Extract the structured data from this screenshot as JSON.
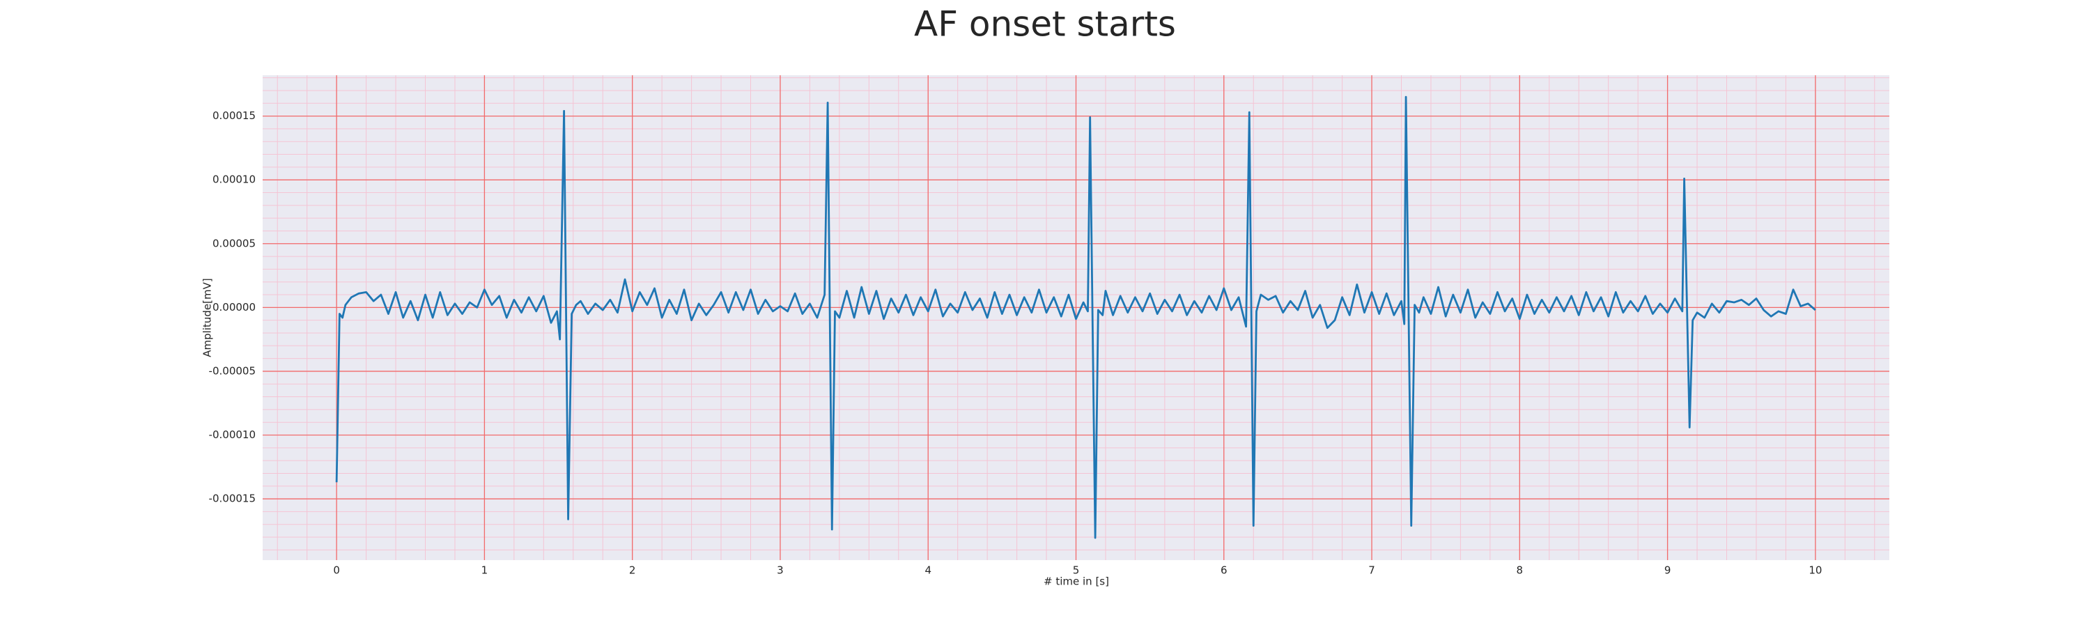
{
  "chart_data": {
    "type": "line",
    "title": "AF onset starts",
    "xlabel": "# time in [s]",
    "ylabel": "Amplitude[mV]",
    "color": "#1f77b4",
    "grid": true,
    "minor_grid": true,
    "grid_color": "#f26b6b",
    "minor_grid_color": "#f5c4d4",
    "background": "#eaeaf2",
    "xlim": [
      -0.5,
      10.5
    ],
    "ylim": [
      -0.000198,
      0.000182
    ],
    "xticks": [
      0,
      1,
      2,
      3,
      4,
      5,
      6,
      7,
      8,
      9,
      10
    ],
    "yticks": [
      {
        "value": -0.00015,
        "label": "-0.00015"
      },
      {
        "value": -0.0001,
        "label": "-0.00010"
      },
      {
        "value": -5e-05,
        "label": "-0.00005"
      },
      {
        "value": 0,
        "label": "0.00000"
      },
      {
        "value": 5e-05,
        "label": "0.00005"
      },
      {
        "value": 0.0001,
        "label": "0.00010"
      },
      {
        "value": 0.00015,
        "label": "0.00015"
      }
    ],
    "x": [
      0,
      0.02,
      0.04,
      0.06,
      0.1,
      0.15,
      0.2,
      0.25,
      0.3,
      0.35,
      0.4,
      0.45,
      0.5,
      0.55,
      0.6,
      0.65,
      0.7,
      0.75,
      0.8,
      0.85,
      0.9,
      0.95,
      1,
      1.05,
      1.1,
      1.15,
      1.2,
      1.25,
      1.3,
      1.35,
      1.4,
      1.45,
      1.49,
      1.51,
      1.538,
      1.566,
      1.59,
      1.62,
      1.65,
      1.7,
      1.75,
      1.8,
      1.85,
      1.9,
      1.95,
      2,
      2.05,
      2.1,
      2.15,
      2.2,
      2.25,
      2.3,
      2.35,
      2.4,
      2.45,
      2.5,
      2.55,
      2.6,
      2.65,
      2.7,
      2.75,
      2.8,
      2.85,
      2.9,
      2.95,
      3,
      3.05,
      3.1,
      3.15,
      3.2,
      3.25,
      3.3,
      3.321,
      3.35,
      3.37,
      3.4,
      3.45,
      3.5,
      3.55,
      3.6,
      3.65,
      3.7,
      3.75,
      3.8,
      3.85,
      3.9,
      3.95,
      4,
      4.05,
      4.1,
      4.15,
      4.2,
      4.25,
      4.3,
      4.35,
      4.4,
      4.45,
      4.5,
      4.55,
      4.6,
      4.65,
      4.7,
      4.75,
      4.8,
      4.85,
      4.9,
      4.95,
      5,
      5.05,
      5.08,
      5.095,
      5.13,
      5.15,
      5.18,
      5.2,
      5.25,
      5.3,
      5.35,
      5.4,
      5.45,
      5.5,
      5.55,
      5.6,
      5.65,
      5.7,
      5.75,
      5.8,
      5.85,
      5.9,
      5.95,
      6,
      6.05,
      6.1,
      6.15,
      6.172,
      6.2,
      6.22,
      6.25,
      6.3,
      6.35,
      6.4,
      6.45,
      6.5,
      6.55,
      6.6,
      6.65,
      6.7,
      6.75,
      6.8,
      6.85,
      6.9,
      6.95,
      7,
      7.05,
      7.1,
      7.15,
      7.2,
      7.22,
      7.231,
      7.267,
      7.29,
      7.32,
      7.35,
      7.4,
      7.45,
      7.5,
      7.55,
      7.6,
      7.65,
      7.7,
      7.75,
      7.8,
      7.85,
      7.9,
      7.95,
      8,
      8.05,
      8.1,
      8.15,
      8.2,
      8.25,
      8.3,
      8.35,
      8.4,
      8.45,
      8.5,
      8.55,
      8.6,
      8.65,
      8.7,
      8.75,
      8.8,
      8.85,
      8.9,
      8.95,
      9,
      9.05,
      9.1,
      9.113,
      9.149,
      9.17,
      9.2,
      9.25,
      9.3,
      9.35,
      9.4,
      9.45,
      9.5,
      9.55,
      9.6,
      9.65,
      9.7,
      9.75,
      9.8,
      9.85,
      9.9,
      9.95,
      10
    ],
    "values": [
      -0.000137,
      -5e-06,
      -8e-06,
      2e-06,
      8e-06,
      1.1e-05,
      1.2e-05,
      5e-06,
      1e-05,
      -5e-06,
      1.2e-05,
      -8e-06,
      5e-06,
      -1e-05,
      1e-05,
      -8e-06,
      1.2e-05,
      -6e-06,
      3e-06,
      -5e-06,
      4e-06,
      0,
      1.4e-05,
      2e-06,
      9e-06,
      -8e-06,
      6e-06,
      -4e-06,
      8e-06,
      -3e-06,
      9e-06,
      -1.2e-05,
      -3e-06,
      -2.5e-05,
      0.000154,
      -0.000166,
      -5e-06,
      2e-06,
      5e-06,
      -5e-06,
      3e-06,
      -2e-06,
      6e-06,
      -4e-06,
      2.2e-05,
      -3e-06,
      1.2e-05,
      2e-06,
      1.5e-05,
      -8e-06,
      6e-06,
      -5e-06,
      1.4e-05,
      -1e-05,
      3e-06,
      -6e-06,
      2e-06,
      1.2e-05,
      -4e-06,
      1.2e-05,
      -2e-06,
      1.4e-05,
      -5e-06,
      6e-06,
      -3e-06,
      1e-06,
      -3e-06,
      1.1e-05,
      -5e-06,
      3e-06,
      -8e-06,
      1e-05,
      0.0001605,
      -0.000174,
      -3e-06,
      -8e-06,
      1.3e-05,
      -8e-06,
      1.6e-05,
      -5e-06,
      1.3e-05,
      -9e-06,
      7e-06,
      -4e-06,
      1e-05,
      -6e-06,
      8e-06,
      -3e-06,
      1.4e-05,
      -7e-06,
      3e-06,
      -4e-06,
      1.2e-05,
      -2e-06,
      7e-06,
      -8e-06,
      1.2e-05,
      -5e-06,
      1e-05,
      -6e-06,
      8e-06,
      -4e-06,
      1.4e-05,
      -4e-06,
      8e-06,
      -7e-06,
      1e-05,
      -9e-06,
      4e-06,
      -3e-06,
      0.000149,
      -0.0001805,
      -2e-06,
      -6e-06,
      1.3e-05,
      -6e-06,
      9e-06,
      -4e-06,
      8e-06,
      -3e-06,
      1.1e-05,
      -5e-06,
      6e-06,
      -3e-06,
      1e-05,
      -6e-06,
      5e-06,
      -4e-06,
      9e-06,
      -2e-06,
      1.5e-05,
      -2e-06,
      8e-06,
      -1.5e-05,
      0.000153,
      -0.000171,
      -3e-06,
      1e-05,
      6e-06,
      9e-06,
      -4e-06,
      5e-06,
      -2e-06,
      1.3e-05,
      -8e-06,
      2e-06,
      -1.6e-05,
      -1e-05,
      8e-06,
      -6e-06,
      1.8e-05,
      -4e-06,
      1.2e-05,
      -5e-06,
      1.1e-05,
      -6e-06,
      5e-06,
      -1.3e-05,
      0.000165,
      -0.000171,
      2e-06,
      -4e-06,
      8e-06,
      -5e-06,
      1.6e-05,
      -7e-06,
      1e-05,
      -4e-06,
      1.4e-05,
      -8e-06,
      4e-06,
      -5e-06,
      1.2e-05,
      -3e-06,
      7e-06,
      -9e-06,
      1e-05,
      -5e-06,
      6e-06,
      -4e-06,
      8e-06,
      -3e-06,
      9e-06,
      -6e-06,
      1.2e-05,
      -3e-06,
      8e-06,
      -7e-06,
      1.2e-05,
      -4e-06,
      5e-06,
      -3e-06,
      9e-06,
      -5e-06,
      3e-06,
      -4e-06,
      7e-06,
      -3e-06,
      0.000101,
      -9.4e-05,
      -1e-05,
      -4e-06,
      -8e-06,
      3e-06,
      -4e-06,
      5e-06,
      4e-06,
      6e-06,
      2e-06,
      7e-06,
      -2e-06,
      -7e-06,
      -3e-06,
      -5e-06,
      1.4e-05,
      1e-06,
      3e-06,
      -2e-06
    ]
  }
}
